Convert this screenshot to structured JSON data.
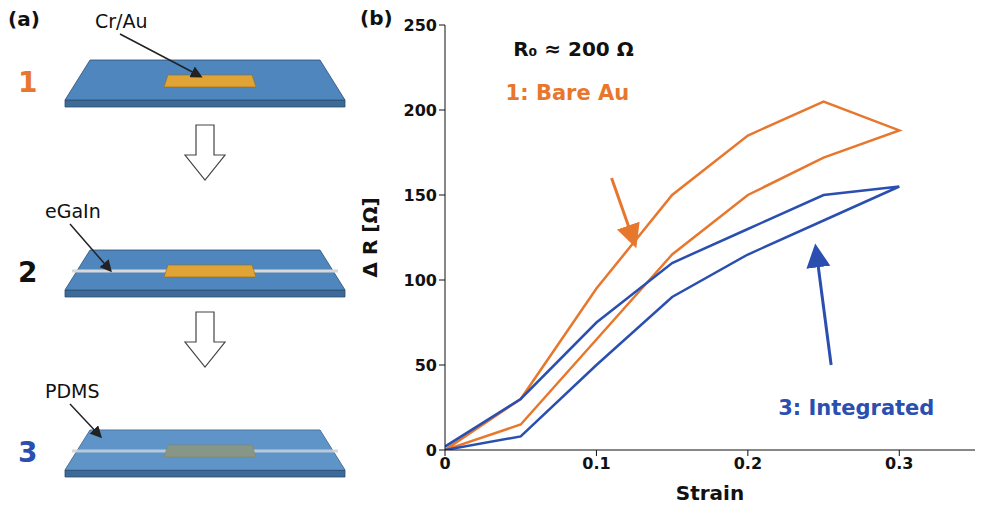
{
  "diagram": {
    "panel": "(a)",
    "steps": [
      {
        "number": "1",
        "number_color": "#e8772e",
        "label": "Cr/Au"
      },
      {
        "number": "2",
        "number_color": "#111111",
        "label": "eGaIn"
      },
      {
        "number": "3",
        "number_color": "#2a4fb0",
        "label": "PDMS"
      }
    ]
  },
  "chart_data": {
    "panel": "(b)",
    "type": "line",
    "annotation": "R₀ ≈ 200 Ω",
    "x_label": "Strain",
    "y_label": "Δ R [Ω]",
    "x": [
      0,
      0.05,
      0.1,
      0.15,
      0.2,
      0.25,
      0.3,
      0.25,
      0.2,
      0.15,
      0.1,
      0.05,
      0
    ],
    "series": [
      {
        "name": "1: Bare Au",
        "color": "#e8772e",
        "values": [
          0,
          15,
          65,
          115,
          150,
          172,
          188,
          205,
          185,
          150,
          95,
          30,
          0
        ]
      },
      {
        "name": "3: Integrated",
        "color": "#2a4fb0",
        "values": [
          0,
          8,
          50,
          90,
          115,
          135,
          155,
          150,
          130,
          110,
          75,
          30,
          2
        ]
      }
    ],
    "xlim": [
      0,
      0.35
    ],
    "xticks": [
      0,
      0.1,
      0.2,
      0.3
    ],
    "ylim": [
      0,
      250
    ],
    "yticks": [
      0,
      50,
      100,
      150,
      200,
      250
    ],
    "grid": false
  }
}
